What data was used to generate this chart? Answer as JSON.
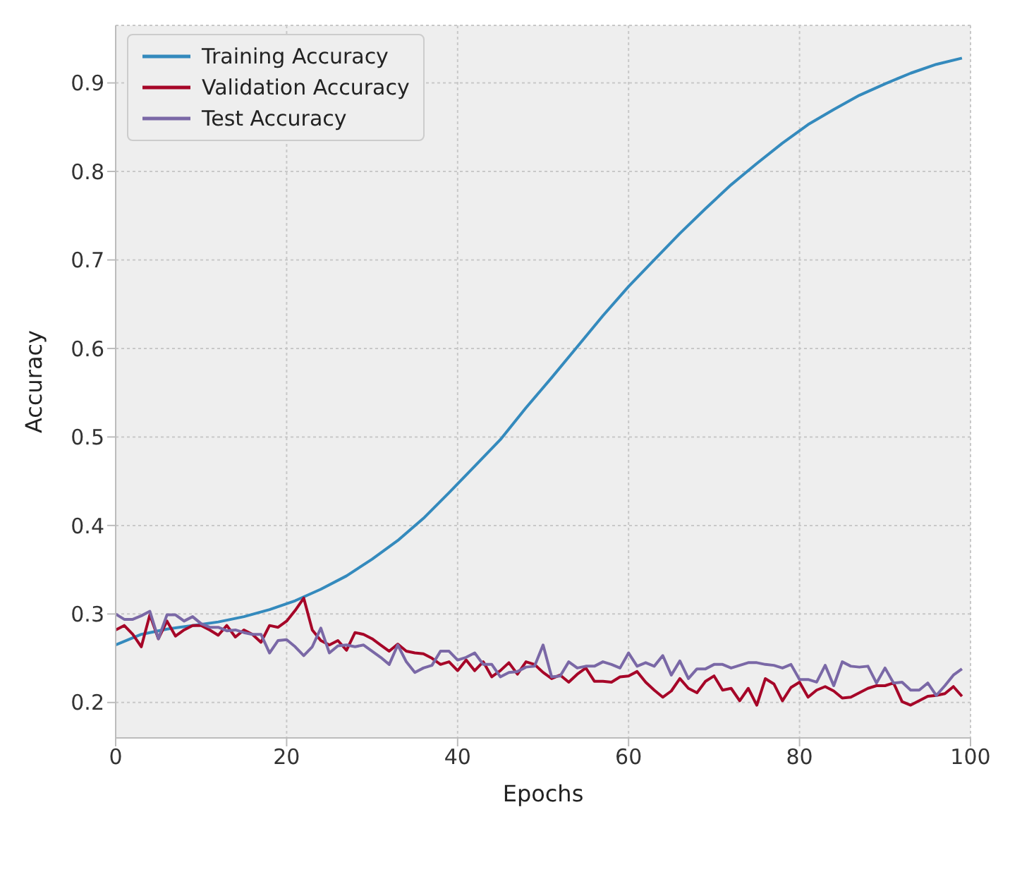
{
  "chart_data": {
    "type": "line",
    "xlabel": "Epochs",
    "ylabel": "Accuracy",
    "xlim": [
      0,
      100
    ],
    "xticks": [
      0,
      20,
      40,
      60,
      80,
      100
    ],
    "ylim": [
      0.16,
      0.965
    ],
    "yticks": [
      0.2,
      0.3,
      0.4,
      0.5,
      0.6,
      0.7,
      0.8,
      0.9
    ],
    "grid": true,
    "legend": "top left",
    "line_style": "solid",
    "marker": "none",
    "x": [
      0,
      1,
      2,
      3,
      4,
      5,
      6,
      7,
      8,
      9,
      10,
      11,
      12,
      13,
      14,
      15,
      16,
      17,
      18,
      19,
      20,
      21,
      22,
      23,
      24,
      25,
      26,
      27,
      28,
      29,
      30,
      31,
      32,
      33,
      34,
      35,
      36,
      37,
      38,
      39,
      40,
      41,
      42,
      43,
      44,
      45,
      46,
      47,
      48,
      49,
      50,
      51,
      52,
      53,
      54,
      55,
      56,
      57,
      58,
      59,
      60,
      61,
      62,
      63,
      64,
      65,
      66,
      67,
      68,
      69,
      70,
      71,
      72,
      73,
      74,
      75,
      76,
      77,
      78,
      79,
      80,
      81,
      82,
      83,
      84,
      85,
      86,
      87,
      88,
      89,
      90,
      91,
      92,
      93,
      94,
      95,
      96,
      97,
      98,
      99
    ],
    "series": [
      {
        "name": "Training Accuracy",
        "color": "#348abd",
        "x": [
          0,
          3,
          6,
          9,
          12,
          15,
          18,
          21,
          24,
          27,
          30,
          33,
          36,
          39,
          42,
          45,
          48,
          51,
          54,
          57,
          60,
          63,
          66,
          69,
          72,
          75,
          78,
          81,
          84,
          87,
          90,
          93,
          96,
          99
        ],
        "values": [
          0.265,
          0.277,
          0.283,
          0.287,
          0.291,
          0.297,
          0.305,
          0.315,
          0.328,
          0.343,
          0.362,
          0.383,
          0.408,
          0.437,
          0.467,
          0.497,
          0.533,
          0.567,
          0.602,
          0.637,
          0.67,
          0.7,
          0.73,
          0.758,
          0.785,
          0.809,
          0.832,
          0.853,
          0.87,
          0.886,
          0.899,
          0.911,
          0.921,
          0.928
        ]
      },
      {
        "name": "Validation Accuracy",
        "color": "#a60628",
        "values": [
          0.282,
          0.287,
          0.277,
          0.263,
          0.299,
          0.272,
          0.292,
          0.275,
          0.282,
          0.287,
          0.287,
          0.282,
          0.276,
          0.287,
          0.274,
          0.282,
          0.277,
          0.268,
          0.287,
          0.285,
          0.292,
          0.304,
          0.318,
          0.282,
          0.27,
          0.265,
          0.27,
          0.259,
          0.279,
          0.277,
          0.272,
          0.265,
          0.258,
          0.266,
          0.258,
          0.256,
          0.255,
          0.25,
          0.243,
          0.246,
          0.236,
          0.248,
          0.236,
          0.246,
          0.229,
          0.236,
          0.245,
          0.232,
          0.246,
          0.243,
          0.234,
          0.227,
          0.231,
          0.223,
          0.232,
          0.239,
          0.224,
          0.224,
          0.223,
          0.229,
          0.23,
          0.235,
          0.223,
          0.214,
          0.206,
          0.213,
          0.227,
          0.216,
          0.211,
          0.224,
          0.23,
          0.214,
          0.216,
          0.202,
          0.216,
          0.197,
          0.227,
          0.221,
          0.202,
          0.217,
          0.223,
          0.206,
          0.214,
          0.218,
          0.213,
          0.205,
          0.206,
          0.211,
          0.216,
          0.219,
          0.219,
          0.222,
          0.201,
          0.197,
          0.202,
          0.207,
          0.208,
          0.21,
          0.218,
          0.207
        ]
      },
      {
        "name": "Test Accuracy",
        "color": "#7a68a6",
        "values": [
          0.3,
          0.294,
          0.294,
          0.298,
          0.303,
          0.272,
          0.299,
          0.299,
          0.292,
          0.297,
          0.289,
          0.285,
          0.285,
          0.281,
          0.282,
          0.279,
          0.277,
          0.277,
          0.256,
          0.27,
          0.271,
          0.263,
          0.253,
          0.263,
          0.284,
          0.256,
          0.264,
          0.265,
          0.263,
          0.265,
          0.258,
          0.251,
          0.243,
          0.265,
          0.246,
          0.234,
          0.239,
          0.242,
          0.258,
          0.258,
          0.248,
          0.251,
          0.256,
          0.243,
          0.243,
          0.229,
          0.234,
          0.235,
          0.24,
          0.241,
          0.265,
          0.229,
          0.23,
          0.246,
          0.239,
          0.241,
          0.241,
          0.246,
          0.243,
          0.239,
          0.256,
          0.241,
          0.245,
          0.241,
          0.253,
          0.231,
          0.247,
          0.227,
          0.238,
          0.238,
          0.243,
          0.243,
          0.239,
          0.242,
          0.245,
          0.245,
          0.243,
          0.242,
          0.239,
          0.243,
          0.226,
          0.226,
          0.223,
          0.242,
          0.219,
          0.246,
          0.241,
          0.24,
          0.241,
          0.222,
          0.239,
          0.222,
          0.223,
          0.214,
          0.214,
          0.222,
          0.208,
          0.219,
          0.231,
          0.238
        ]
      }
    ]
  }
}
